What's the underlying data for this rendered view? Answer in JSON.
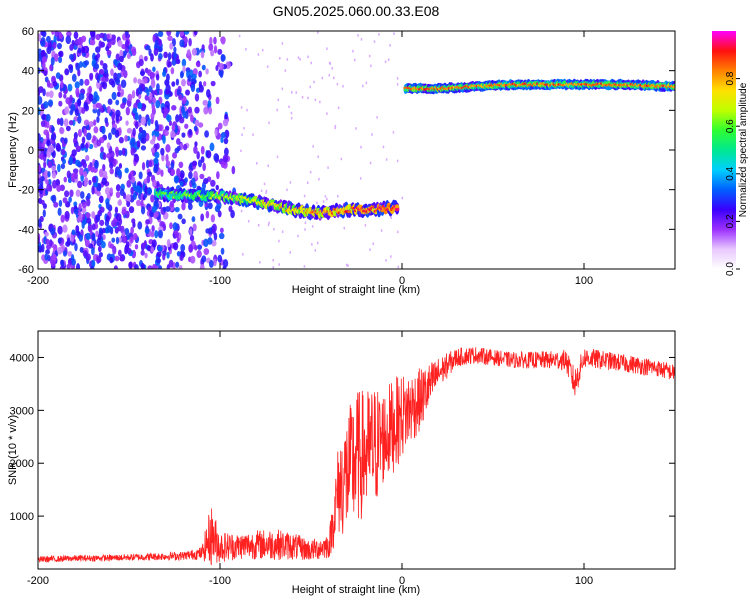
{
  "title": "GN05.2025.060.00.33.E08",
  "chart_data": [
    {
      "type": "heatmap",
      "xlabel": "Height of straight line (km)",
      "ylabel": "Frequency (Hz)",
      "xlim": [
        -200,
        150
      ],
      "ylim": [
        -60,
        60
      ],
      "xticks": [
        -200,
        -100,
        0,
        100
      ],
      "yticks": [
        -60,
        -40,
        -20,
        0,
        20,
        40,
        60
      ],
      "colorbar": {
        "label": "Normalized spectral amplitude",
        "range": [
          0,
          1
        ],
        "ticks": [
          "0.0",
          "0.2",
          "0.4",
          "0.6",
          "0.8"
        ],
        "colors": [
          "#ffffff",
          "#e8c8ff",
          "#9b30ff",
          "#3a00ff",
          "#0060ff",
          "#00d0ff",
          "#00e890",
          "#30ff30",
          "#c0ff00",
          "#ffe000",
          "#ff8000",
          "#ff1010",
          "#ff00ff"
        ]
      },
      "tracks": [
        {
          "x": [
            -135,
            -120,
            -100,
            -80,
            -60,
            -45,
            -30,
            -15,
            -2
          ],
          "y": [
            -22,
            -23,
            -23,
            -26,
            -30,
            -32,
            -30,
            -30,
            -29
          ]
        },
        {
          "x": [
            2,
            20,
            40,
            60,
            80,
            100,
            120,
            150
          ],
          "y": [
            31,
            31,
            32,
            33,
            33,
            33,
            33,
            32
          ]
        }
      ]
    },
    {
      "type": "line",
      "xlabel": "Height of straight line (km)",
      "ylabel": "SNR (10 * v/v)",
      "xlim": [
        -200,
        150
      ],
      "ylim": [
        0,
        4500
      ],
      "xticks": [
        -200,
        -100,
        0,
        100
      ],
      "yticks": [
        1000,
        2000,
        3000,
        4000
      ],
      "color": "#ff2020",
      "series": [
        {
          "x": [
            -200,
            -180,
            -160,
            -140,
            -120,
            -110,
            -105,
            -100,
            -90,
            -80,
            -70,
            -60,
            -50,
            -40,
            -35,
            -30,
            -25,
            -20,
            -15,
            -10,
            -5,
            0,
            10,
            20,
            30,
            40,
            50,
            60,
            70,
            80,
            90,
            95,
            100,
            110,
            120,
            130,
            140,
            150
          ],
          "y": [
            180,
            200,
            210,
            230,
            250,
            300,
            650,
            420,
            430,
            460,
            470,
            430,
            350,
            450,
            1500,
            1800,
            2100,
            2200,
            2300,
            2500,
            2700,
            2900,
            3200,
            3700,
            4000,
            4050,
            4000,
            3950,
            3950,
            3950,
            3950,
            3500,
            4000,
            3950,
            3900,
            3850,
            3800,
            3700
          ],
          "noise": [
            60,
            60,
            60,
            70,
            80,
            120,
            600,
            300,
            250,
            280,
            300,
            260,
            200,
            250,
            900,
            1200,
            1300,
            1200,
            1200,
            900,
            900,
            800,
            600,
            300,
            180,
            160,
            150,
            150,
            160,
            170,
            200,
            300,
            200,
            180,
            170,
            170,
            160,
            160
          ]
        }
      ]
    }
  ]
}
